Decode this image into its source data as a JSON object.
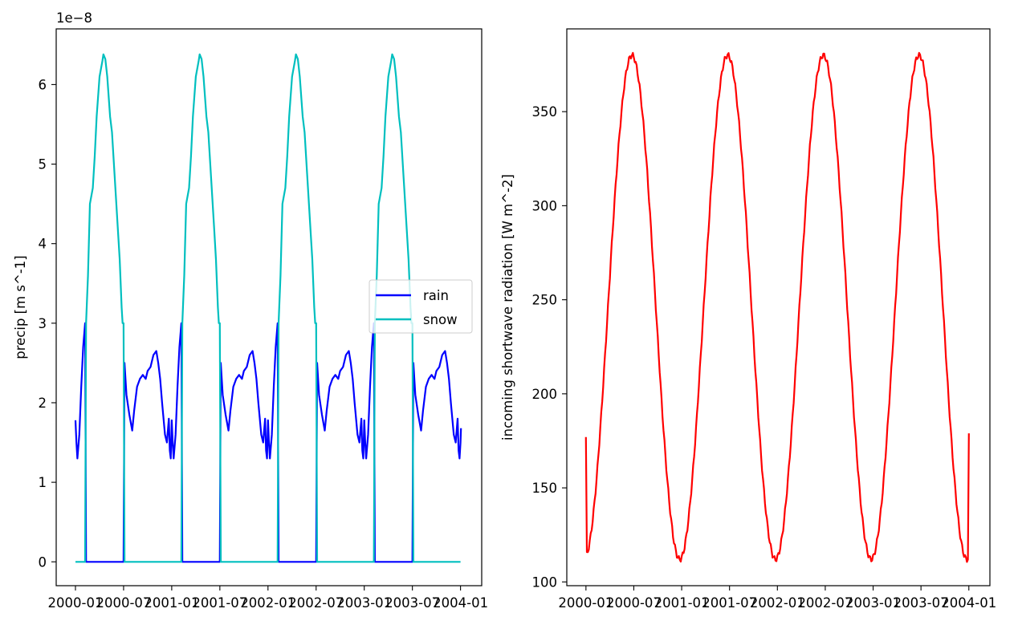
{
  "chart_data": [
    {
      "type": "line",
      "ylabel": "precip [m s^-1]",
      "offset_text": "1e−8",
      "x_ticks": [
        "2000-01",
        "2000-07",
        "2001-01",
        "2001-07",
        "2002-01",
        "2002-07",
        "2003-01",
        "2003-07",
        "2004-01"
      ],
      "y_ticks": [
        "0",
        "1",
        "2",
        "3",
        "4",
        "5",
        "6"
      ],
      "xlim_years": [
        1999.8,
        2004.22
      ],
      "ylim": [
        -0.3,
        6.7
      ],
      "legend_position": "center-right",
      "series": [
        {
          "name": "rain",
          "color": "#0000ff",
          "points": [
            [
              2000.0,
              1.78
            ],
            [
              2000.01,
              1.5
            ],
            [
              2000.02,
              1.3
            ],
            [
              2000.04,
              1.6
            ],
            [
              2000.06,
              2.2
            ],
            [
              2000.08,
              2.7
            ],
            [
              2000.1,
              3.0
            ],
            [
              2000.11,
              0
            ],
            [
              2000.5,
              0
            ],
            [
              2000.51,
              2.5
            ],
            [
              2000.53,
              2.1
            ],
            [
              2000.56,
              1.85
            ],
            [
              2000.59,
              1.65
            ],
            [
              2000.61,
              1.9
            ],
            [
              2000.64,
              2.2
            ],
            [
              2000.67,
              2.3
            ],
            [
              2000.7,
              2.35
            ],
            [
              2000.73,
              2.3
            ],
            [
              2000.75,
              2.4
            ],
            [
              2000.78,
              2.45
            ],
            [
              2000.81,
              2.6
            ],
            [
              2000.84,
              2.65
            ],
            [
              2000.86,
              2.5
            ],
            [
              2000.88,
              2.3
            ],
            [
              2000.9,
              2.0
            ],
            [
              2000.93,
              1.6
            ],
            [
              2000.95,
              1.5
            ],
            [
              2000.97,
              1.8
            ],
            [
              2000.98,
              1.4
            ],
            [
              2000.99,
              1.3
            ]
          ]
        },
        {
          "name": "snow",
          "color": "#00bfbf",
          "points": [
            [
              2000.1,
              0
            ],
            [
              2000.11,
              3.0
            ],
            [
              2000.13,
              3.6
            ],
            [
              2000.15,
              4.5
            ],
            [
              2000.18,
              4.7
            ],
            [
              2000.2,
              5.1
            ],
            [
              2000.22,
              5.6
            ],
            [
              2000.25,
              6.1
            ],
            [
              2000.28,
              6.3
            ],
            [
              2000.29,
              6.38
            ],
            [
              2000.31,
              6.32
            ],
            [
              2000.33,
              6.1
            ],
            [
              2000.36,
              5.6
            ],
            [
              2000.38,
              5.4
            ],
            [
              2000.41,
              4.8
            ],
            [
              2000.44,
              4.2
            ],
            [
              2000.46,
              3.8
            ],
            [
              2000.48,
              3.2
            ],
            [
              2000.49,
              3.0
            ],
            [
              2000.5,
              3.0
            ],
            [
              2000.51,
              0
            ],
            [
              2000.6,
              0
            ],
            [
              2000.7,
              0
            ]
          ]
        }
      ],
      "period_years": 1,
      "cycles": 4
    },
    {
      "type": "line",
      "ylabel": "incoming shortwave radiation [W m^-2]",
      "x_ticks": [
        "2000-01",
        "2000-07",
        "2001-01",
        "2001-07",
        "2002-01",
        "2002-07",
        "2003-01",
        "2003-07",
        "2004-01"
      ],
      "y_ticks": [
        "100",
        "150",
        "200",
        "250",
        "300",
        "350"
      ],
      "xlim_years": [
        1999.8,
        2004.22
      ],
      "ylim": [
        98,
        394
      ],
      "series": [
        {
          "name": "shortwave",
          "color": "#ff0000",
          "mean": 246,
          "amplitude": 134,
          "peak_year_fraction": 0.48,
          "start_value": 177,
          "end_value": 179
        }
      ]
    }
  ]
}
